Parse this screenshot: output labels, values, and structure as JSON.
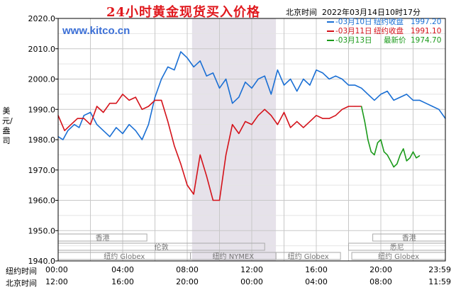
{
  "header": {
    "title": "24小时黄金现货买入价格",
    "beijing_time_label": "北京时间",
    "timestamp": "2022年03月14日10时17分",
    "site": "www.kitco.cn"
  },
  "colors": {
    "series_0310": "#1a6fd4",
    "series_0311": "#d4121a",
    "series_0313": "#1a9a1a",
    "grid": "#c8c8c8",
    "axis": "#000000",
    "title": "#e0191e",
    "shade": "#e6e2ea"
  },
  "legend": [
    {
      "date": "-03月10日",
      "label": "纽约收盘",
      "value": "1997.20",
      "color": "#1a6fd4"
    },
    {
      "date": "-03月11日",
      "label": "纽约收盘",
      "value": "1991.10",
      "color": "#d4121a"
    },
    {
      "date": "-03月13日",
      "label": "最新价",
      "value": "1974.70",
      "color": "#1a9a1a"
    }
  ],
  "y_axis_label": "美元/盎司",
  "axis_rows": {
    "ny_label": "纽约时间",
    "bj_label": "北京时间",
    "ny_ticks": [
      "00:00",
      "04:00",
      "08:00",
      "12:00",
      "16:00",
      "20:00",
      "23:59"
    ],
    "bj_ticks": [
      "12:00",
      "16:00",
      "20:00",
      "00:00",
      "04:00",
      "08:00",
      "11:59"
    ]
  },
  "markets": {
    "hongkong": "香港",
    "london": "伦敦",
    "ny_globex": "纽约 Globex",
    "ny_nymex": "纽约 NYMEX",
    "sydney": "悉尼"
  },
  "chart_data": {
    "type": "line",
    "title": "24小时黄金现货买入价格",
    "ylabel": "美元/盎司",
    "ylim": [
      1940,
      2020
    ],
    "yticks": [
      1940,
      1950,
      1960,
      1970,
      1980,
      1990,
      2000,
      2010,
      2020
    ],
    "ytick_labels": [
      "1940.0",
      "1950.0",
      "1960.0",
      "1970.0",
      "1980.0",
      "1990.0",
      "2000.0",
      "2010.0",
      "2020.0"
    ],
    "x_unit": "hours since 00:00 New York time",
    "xlim": [
      0,
      24
    ],
    "grid": true,
    "legend_position": "top-right",
    "shaded_x_range": [
      8.3,
      13.5
    ],
    "series": [
      {
        "name": "03月10日 纽约收盘 1997.20",
        "color": "#1a6fd4",
        "x": [
          0,
          0.3,
          0.6,
          1.0,
          1.3,
          1.6,
          2.0,
          2.4,
          2.8,
          3.2,
          3.6,
          4.0,
          4.4,
          4.8,
          5.2,
          5.6,
          6.0,
          6.4,
          6.8,
          7.2,
          7.6,
          8.0,
          8.4,
          8.8,
          9.2,
          9.6,
          10.0,
          10.4,
          10.8,
          11.2,
          11.6,
          12.0,
          12.4,
          12.8,
          13.2,
          13.6,
          14.0,
          14.4,
          14.8,
          15.2,
          15.6,
          16.0,
          16.4,
          16.8,
          17.2,
          17.6,
          18.0,
          18.4,
          18.8,
          19.2,
          19.6,
          20.0,
          20.4,
          20.8,
          21.2,
          21.6,
          22.0,
          22.4,
          22.8,
          23.2,
          23.6,
          24.0
        ],
        "y": [
          1981,
          1980,
          1983,
          1985,
          1984,
          1988,
          1989,
          1985,
          1983,
          1981,
          1984,
          1982,
          1985,
          1983,
          1980,
          1985,
          1994,
          2000,
          2004,
          2003,
          2009,
          2007,
          2004,
          2006,
          2001,
          2002,
          1997,
          2000,
          1992,
          1994,
          1999,
          1997,
          2000,
          2001,
          1995,
          2003,
          1998,
          2000,
          1996,
          2000,
          1998,
          2003,
          2002,
          2000,
          2001,
          2000,
          1998,
          1998,
          1997,
          1995,
          1993,
          1995,
          1996,
          1993,
          1994,
          1995,
          1993,
          1993,
          1992,
          1991,
          1990,
          1987
        ]
      },
      {
        "name": "03月11日 纽约收盘 1991.10",
        "color": "#d4121a",
        "x": [
          0,
          0.4,
          0.8,
          1.2,
          1.6,
          2.0,
          2.4,
          2.8,
          3.2,
          3.6,
          4.0,
          4.4,
          4.8,
          5.2,
          5.6,
          6.0,
          6.4,
          6.8,
          7.2,
          7.6,
          8.0,
          8.4,
          8.8,
          9.2,
          9.6,
          10.0,
          10.4,
          10.8,
          11.2,
          11.6,
          12.0,
          12.4,
          12.8,
          13.2,
          13.6,
          14.0,
          14.4,
          14.8,
          15.2,
          15.6,
          16.0,
          16.4,
          16.8,
          17.2,
          17.6,
          18.0,
          18.4,
          18.8
        ],
        "y": [
          1988,
          1983,
          1985,
          1987,
          1987,
          1985,
          1991,
          1989,
          1992,
          1992,
          1995,
          1993,
          1994,
          1990,
          1991,
          1993,
          1993,
          1986,
          1978,
          1972,
          1965,
          1962,
          1975,
          1968,
          1960,
          1960,
          1975,
          1985,
          1982,
          1986,
          1985,
          1988,
          1990,
          1988,
          1985,
          1989,
          1984,
          1986,
          1984,
          1986,
          1988,
          1987,
          1987,
          1988,
          1990,
          1991,
          1991,
          1991
        ]
      },
      {
        "name": "03月13日 最新价 1974.70",
        "color": "#1a9a1a",
        "x": [
          18.8,
          19.0,
          19.2,
          19.4,
          19.6,
          19.8,
          20.0,
          20.2,
          20.4,
          20.6,
          20.8,
          21.0,
          21.2,
          21.4,
          21.6,
          21.8,
          22.0,
          22.2,
          22.4
        ],
        "y": [
          1991,
          1986,
          1980,
          1976,
          1975,
          1979,
          1980,
          1976,
          1975,
          1973,
          1971,
          1972,
          1975,
          1977,
          1973,
          1974,
          1976,
          1974,
          1974.7
        ]
      }
    ]
  }
}
